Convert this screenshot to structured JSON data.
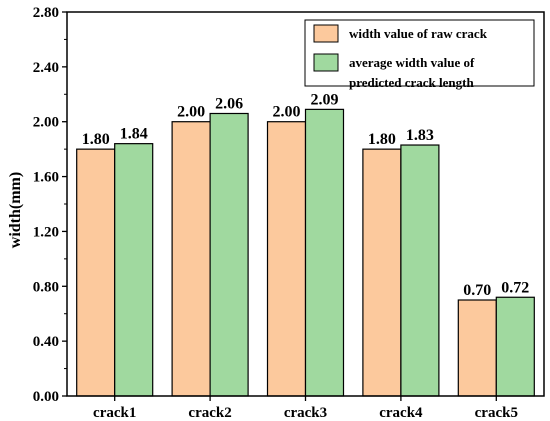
{
  "chart_data": {
    "type": "bar",
    "title": "",
    "xlabel": "",
    "ylabel": "width(mm)",
    "ylim": [
      0,
      2.8
    ],
    "yticks": [
      "0.00",
      "0.40",
      "0.80",
      "1.20",
      "1.60",
      "2.00",
      "2.40",
      "2.80"
    ],
    "categories": [
      "crack1",
      "crack2",
      "crack3",
      "crack4",
      "crack5"
    ],
    "series": [
      {
        "name": "width value of raw crack",
        "color": "#FCC99D",
        "values": [
          1.8,
          2.0,
          2.0,
          1.8,
          0.7
        ],
        "labels": [
          "1.80",
          "2.00",
          "2.00",
          "1.80",
          "0.70"
        ]
      },
      {
        "name": "average width value of predicted crack length",
        "color": "#A0D99F",
        "values": [
          1.84,
          2.06,
          2.09,
          1.83,
          0.72
        ],
        "labels": [
          "1.84",
          "2.06",
          "2.09",
          "1.83",
          "0.72"
        ]
      }
    ],
    "legend": {
      "position": "top-right",
      "lines": [
        [
          "width value of raw crack"
        ],
        [
          "average width value of",
          "predicted crack length"
        ]
      ]
    },
    "grid": false
  }
}
